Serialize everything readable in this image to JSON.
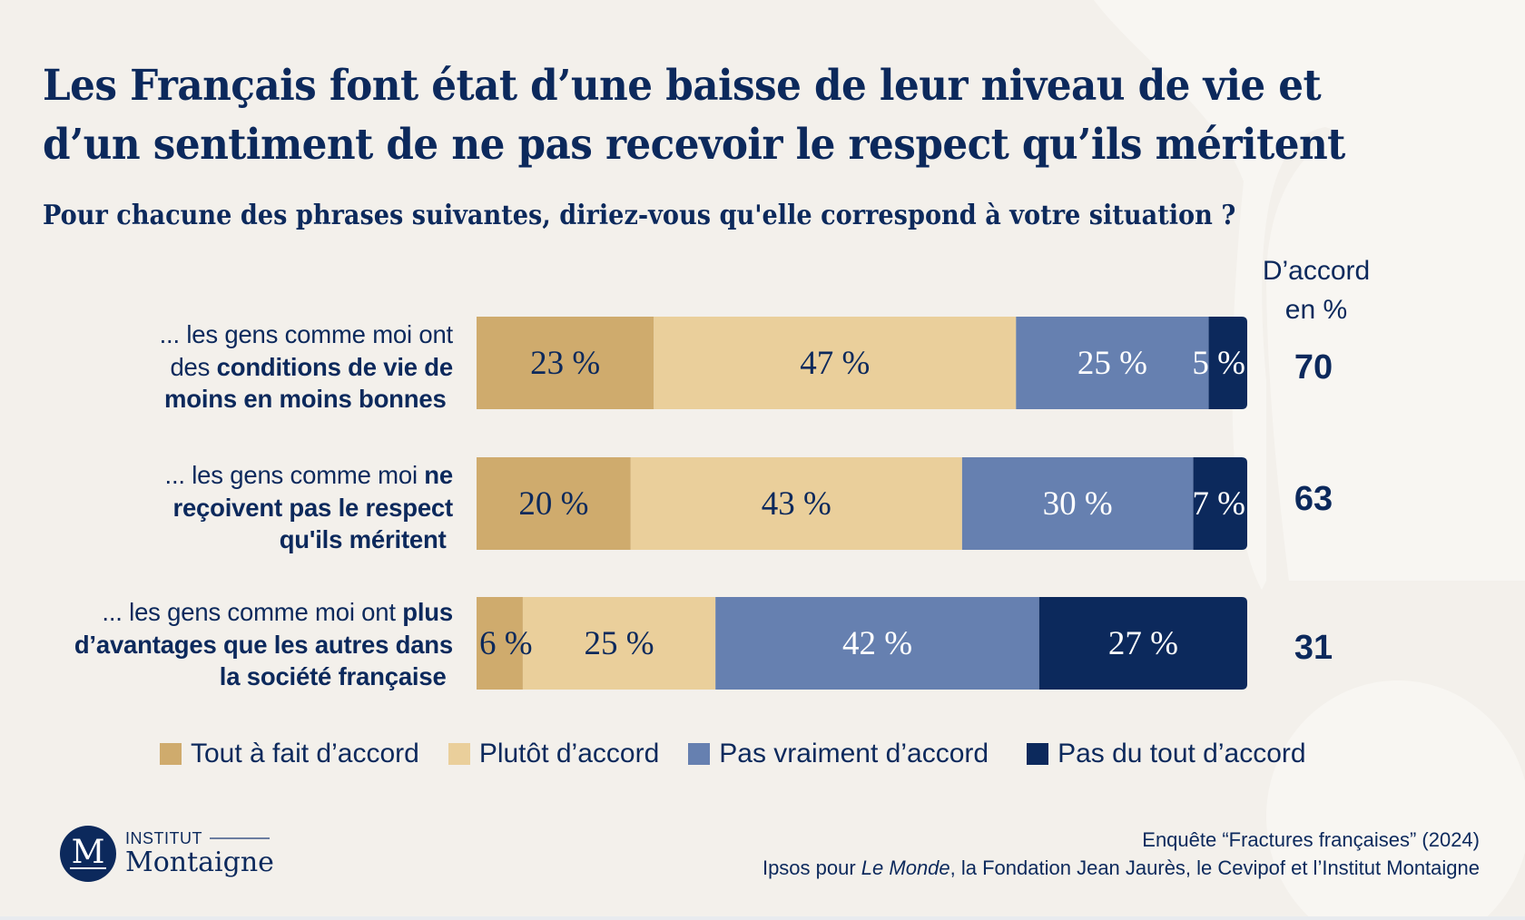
{
  "title": {
    "line1": "Les Français font état d’une baisse de leur niveau de vie et",
    "line2": "d’un sentiment de ne pas recevoir le respect qu’ils méritent"
  },
  "subtitle": "Pour chacune des phrases suivantes, diriez-vous qu'elle correspond à votre situation ?",
  "total_header": {
    "line1": "D’accord",
    "line2": "en %"
  },
  "rows": [
    {
      "label_lines": [
        [
          {
            "text": "... les gens comme moi ont",
            "bold": false
          }
        ],
        [
          {
            "text": "des ",
            "bold": false
          },
          {
            "text": "conditions de vie de",
            "bold": true
          }
        ],
        [
          {
            "text": "moins en moins bonnes ",
            "bold": true
          }
        ]
      ]
    },
    {
      "label_lines": [
        [
          {
            "text": "... les gens comme moi ",
            "bold": false
          },
          {
            "text": "ne",
            "bold": true
          }
        ],
        [
          {
            "text": "reçoivent pas le respect",
            "bold": true
          }
        ],
        [
          {
            "text": "qu'ils méritent ",
            "bold": true
          }
        ]
      ]
    },
    {
      "label_lines": [
        [
          {
            "text": "... les gens comme moi ont ",
            "bold": false
          },
          {
            "text": "plus",
            "bold": true
          }
        ],
        [
          {
            "text": "d’avantages que les autres dans",
            "bold": true
          }
        ],
        [
          {
            "text": "la société française ",
            "bold": true
          }
        ]
      ]
    }
  ],
  "legend": [
    {
      "label": "Tout à fait d’accord",
      "color": "#cfab6d"
    },
    {
      "label": "Plutôt d’accord",
      "color": "#eacf9b"
    },
    {
      "label": "Pas vraiment d’accord",
      "color": "#6680b0"
    },
    {
      "label": "Pas du tout d’accord",
      "color": "#0c295c"
    }
  ],
  "logo": {
    "initial": "M",
    "line1": "INSTITUT",
    "line2": "Montaigne"
  },
  "source": {
    "line1": "Enquête “Fractures françaises” (2024)",
    "line2_pre": "Ipsos pour ",
    "line2_italic": "Le Monde",
    "line2_post": ", la Fondation Jean Jaurès, le Cevipof et l’Institut Montaigne"
  },
  "colors": {
    "text": "#0c295c",
    "background": "#f3f0eb",
    "label_light": "#0c295c",
    "label_dark": "#ffffff"
  },
  "chart_data": {
    "type": "bar",
    "orientation": "horizontal",
    "stacked": true,
    "title": "Les Français font état d’une baisse de leur niveau de vie et d’un sentiment de ne pas recevoir le respect qu’ils méritent",
    "subtitle": "Pour chacune des phrases suivantes, diriez-vous qu'elle correspond à votre situation ?",
    "categories": [
      "... les gens comme moi ont des conditions de vie de moins en moins bonnes",
      "... les gens comme moi ne reçoivent pas le respect qu'ils méritent",
      "... les gens comme moi ont plus d’avantages que les autres dans la société française"
    ],
    "series": [
      {
        "name": "Tout à fait d’accord",
        "color": "#cfab6d",
        "values": [
          23,
          20,
          6
        ]
      },
      {
        "name": "Plutôt d’accord",
        "color": "#eacf9b",
        "values": [
          47,
          43,
          25
        ]
      },
      {
        "name": "Pas vraiment d’accord",
        "color": "#6680b0",
        "values": [
          25,
          30,
          42
        ]
      },
      {
        "name": "Pas du tout d’accord",
        "color": "#0c295c",
        "values": [
          5,
          7,
          27
        ]
      }
    ],
    "value_suffix": " %",
    "totals_label": "D’accord en %",
    "totals": [
      70,
      63,
      31
    ],
    "xlim": [
      0,
      100
    ],
    "xlabel": "",
    "ylabel": "",
    "grid": false,
    "legend_position": "bottom"
  }
}
